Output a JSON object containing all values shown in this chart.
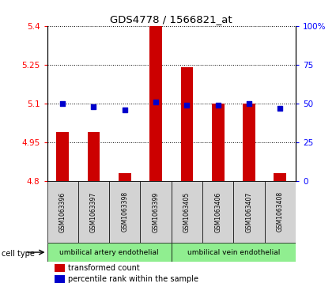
{
  "title": "GDS4778 / 1566821_at",
  "samples": [
    "GSM1063396",
    "GSM1063397",
    "GSM1063398",
    "GSM1063399",
    "GSM1063405",
    "GSM1063406",
    "GSM1063407",
    "GSM1063408"
  ],
  "bar_values": [
    4.99,
    4.99,
    4.83,
    5.4,
    5.24,
    5.1,
    5.1,
    4.83
  ],
  "percentile_values": [
    50,
    48,
    46,
    51,
    49,
    49,
    50,
    47
  ],
  "ylim_left": [
    4.8,
    5.4
  ],
  "ylim_right": [
    0,
    100
  ],
  "yticks_left": [
    4.8,
    4.95,
    5.1,
    5.25,
    5.4
  ],
  "yticks_right": [
    0,
    25,
    50,
    75,
    100
  ],
  "ytick_labels_left": [
    "4.8",
    "4.95",
    "5.1",
    "5.25",
    "5.4"
  ],
  "ytick_labels_right": [
    "0",
    "25",
    "50",
    "75",
    "100%"
  ],
  "bar_color": "#cc0000",
  "dot_color": "#0000cc",
  "cell_type_groups": [
    {
      "label": "umbilical artery endothelial",
      "start": 0,
      "end": 4,
      "color": "#90ee90"
    },
    {
      "label": "umbilical vein endothelial",
      "start": 4,
      "end": 8,
      "color": "#90ee90"
    }
  ],
  "cell_type_label": "cell type",
  "legend_bar_label": "transformed count",
  "legend_dot_label": "percentile rank within the sample",
  "bar_width": 0.4,
  "bg_color": "#ffffff"
}
